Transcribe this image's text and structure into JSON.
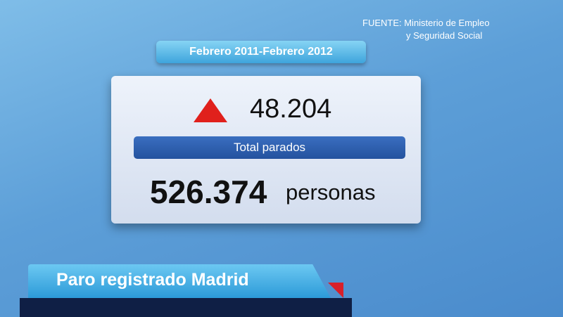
{
  "source": {
    "line1": "FUENTE: Ministerio de Empleo",
    "line2": "y Seguridad Social"
  },
  "period": "Febrero 2011-Febrero 2012",
  "card": {
    "change": "48.204",
    "label": "Total parados",
    "total": "526.374",
    "unit": "personas"
  },
  "banner": {
    "title": "Paro registrado Madrid"
  }
}
